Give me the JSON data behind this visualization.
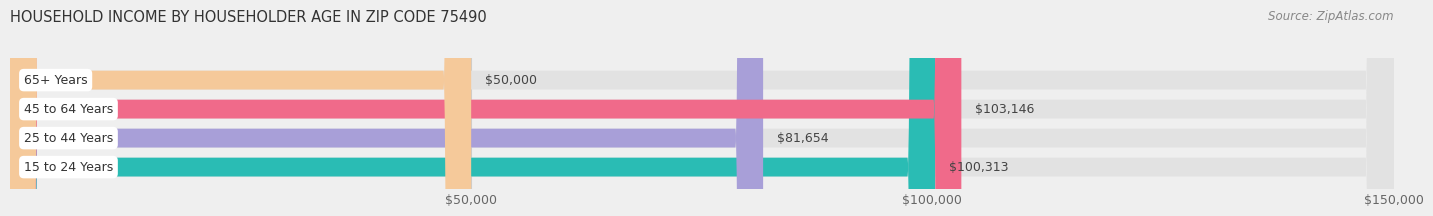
{
  "title": "HOUSEHOLD INCOME BY HOUSEHOLDER AGE IN ZIP CODE 75490",
  "source": "Source: ZipAtlas.com",
  "categories": [
    "15 to 24 Years",
    "25 to 44 Years",
    "45 to 64 Years",
    "65+ Years"
  ],
  "values": [
    100313,
    81654,
    103146,
    50000
  ],
  "bar_colors": [
    "#2abcb4",
    "#a89fd8",
    "#f06a8a",
    "#f5c99a"
  ],
  "bar_labels": [
    "$100,313",
    "$81,654",
    "$103,146",
    "$50,000"
  ],
  "xlim": [
    0,
    150000
  ],
  "xticks": [
    50000,
    100000,
    150000
  ],
  "xtick_labels": [
    "$50,000",
    "$100,000",
    "$150,000"
  ],
  "background_color": "#efefef",
  "bar_bg_color": "#e2e2e2",
  "title_fontsize": 10.5,
  "source_fontsize": 8.5,
  "label_fontsize": 9,
  "tick_fontsize": 9,
  "bar_height": 0.65,
  "fig_width": 14.06,
  "fig_height": 2.33
}
